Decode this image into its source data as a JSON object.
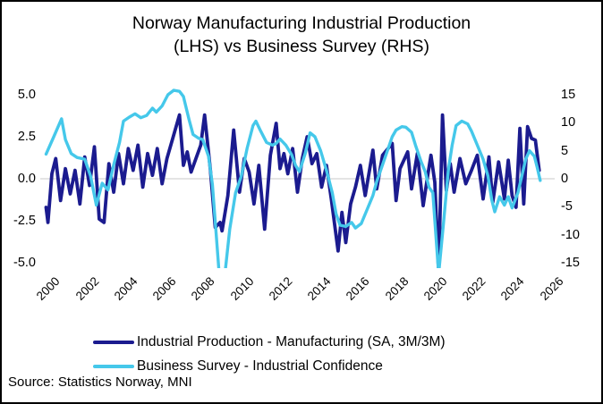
{
  "title": {
    "line1": "Norway Manufacturing Industrial Production",
    "line2": "(LHS) vs Business Survey (RHS)"
  },
  "source": "Source: Statistics Norway, MNI",
  "legend": [
    {
      "label": "Industrial Production - Manufacturing (SA, 3M/3M)",
      "color": "#1b1b8f"
    },
    {
      "label": "Business Survey - Industrial Confidence",
      "color": "#45c8ea"
    }
  ],
  "colors": {
    "navy": "#1b1b8f",
    "cyan": "#45c8ea",
    "gridline": "#d3d3d3",
    "text": "#000000",
    "background": "#ffffff",
    "frame": "#000000"
  },
  "chart_data": {
    "type": "line",
    "title": "Norway Manufacturing Industrial Production (LHS) vs Business Survey (RHS)",
    "grid": "horizontal zero line only",
    "legend_position": "bottom",
    "x_axis": {
      "range": [
        2000,
        2026
      ],
      "tick_labels": [
        "2000",
        "2002",
        "2004",
        "2006",
        "2008",
        "2010",
        "2012",
        "2014",
        "2016",
        "2018",
        "2020",
        "2022",
        "2024",
        "2026"
      ],
      "ticks": [
        2000,
        2002,
        2004,
        2006,
        2008,
        2010,
        2012,
        2014,
        2016,
        2018,
        2020,
        2022,
        2024,
        2026
      ],
      "label_rotation_deg": -45
    },
    "left_axis": {
      "range": [
        -5,
        5
      ],
      "ticks": [
        5.0,
        2.5,
        0.0,
        -2.5,
        -5.0
      ],
      "tick_labels": [
        "5.0",
        "2.5",
        "0.0",
        "-2.5",
        "-5.0"
      ]
    },
    "right_axis": {
      "range": [
        -15,
        15
      ],
      "ticks": [
        15,
        10,
        5,
        0,
        -5,
        -10,
        -15
      ],
      "tick_labels": [
        "15",
        "10",
        "5",
        "0",
        "-5",
        "-10",
        "-15"
      ]
    },
    "zero_gridline": 0,
    "series": [
      {
        "name": "Industrial Production - Manufacturing (SA, 3M/3M)",
        "axis": "left",
        "color": "#1b1b8f",
        "stroke_width": 3.8,
        "points": [
          [
            2000.0,
            -1.7
          ],
          [
            2000.1,
            -2.6
          ],
          [
            2000.3,
            0.3
          ],
          [
            2000.5,
            1.2
          ],
          [
            2000.75,
            -1.3
          ],
          [
            2001.0,
            0.6
          ],
          [
            2001.25,
            -0.9
          ],
          [
            2001.5,
            0.5
          ],
          [
            2001.75,
            -1.5
          ],
          [
            2002.0,
            1.3
          ],
          [
            2002.25,
            -0.4
          ],
          [
            2002.5,
            1.9
          ],
          [
            2002.75,
            -2.4
          ],
          [
            2003.0,
            -2.6
          ],
          [
            2003.25,
            0.9
          ],
          [
            2003.5,
            -0.8
          ],
          [
            2003.75,
            1.5
          ],
          [
            2004.0,
            -0.3
          ],
          [
            2004.25,
            1.8
          ],
          [
            2004.5,
            0.5
          ],
          [
            2004.75,
            2.0
          ],
          [
            2005.0,
            -0.5
          ],
          [
            2005.25,
            1.5
          ],
          [
            2005.5,
            0.2
          ],
          [
            2005.75,
            1.8
          ],
          [
            2006.0,
            -0.3
          ],
          [
            2006.25,
            1.2
          ],
          [
            2006.5,
            2.2
          ],
          [
            2006.9,
            3.8
          ],
          [
            2007.1,
            0.8
          ],
          [
            2007.3,
            1.6
          ],
          [
            2007.5,
            0.4
          ],
          [
            2007.75,
            1.2
          ],
          [
            2008.0,
            2.0
          ],
          [
            2008.2,
            3.8
          ],
          [
            2008.5,
            0.5
          ],
          [
            2008.75,
            -2.9
          ],
          [
            2009.0,
            -2.6
          ],
          [
            2009.1,
            -3.1
          ],
          [
            2009.4,
            -1.0
          ],
          [
            2009.7,
            2.9
          ],
          [
            2010.0,
            -0.8
          ],
          [
            2010.25,
            1.2
          ],
          [
            2010.5,
            0.4
          ],
          [
            2010.75,
            -1.5
          ],
          [
            2011.0,
            0.8
          ],
          [
            2011.3,
            -3.0
          ],
          [
            2011.6,
            1.4
          ],
          [
            2011.9,
            3.3
          ],
          [
            2012.1,
            0.6
          ],
          [
            2012.3,
            1.5
          ],
          [
            2012.5,
            0.3
          ],
          [
            2012.75,
            1.8
          ],
          [
            2013.0,
            -0.8
          ],
          [
            2013.25,
            1.2
          ],
          [
            2013.5,
            2.5
          ],
          [
            2013.75,
            0.9
          ],
          [
            2014.0,
            1.5
          ],
          [
            2014.25,
            -0.5
          ],
          [
            2014.5,
            0.8
          ],
          [
            2014.75,
            -1.2
          ],
          [
            2015.1,
            -4.3
          ],
          [
            2015.3,
            -2.0
          ],
          [
            2015.5,
            -3.8
          ],
          [
            2015.75,
            -1.5
          ],
          [
            2016.0,
            -0.5
          ],
          [
            2016.25,
            0.8
          ],
          [
            2016.5,
            -1.0
          ],
          [
            2016.9,
            1.7
          ],
          [
            2017.1,
            -0.6
          ],
          [
            2017.4,
            1.4
          ],
          [
            2017.9,
            2.1
          ],
          [
            2018.1,
            -1.3
          ],
          [
            2018.3,
            0.6
          ],
          [
            2018.7,
            1.6
          ],
          [
            2018.9,
            -0.6
          ],
          [
            2019.2,
            1.5
          ],
          [
            2019.5,
            -1.6
          ],
          [
            2019.75,
            0.3
          ],
          [
            2019.9,
            1.4
          ],
          [
            2020.1,
            -0.2
          ],
          [
            2020.3,
            -5.6
          ],
          [
            2020.5,
            3.8
          ],
          [
            2020.7,
            -0.7
          ],
          [
            2020.9,
            0.9
          ],
          [
            2021.1,
            -0.8
          ],
          [
            2021.4,
            1.2
          ],
          [
            2021.7,
            -0.3
          ],
          [
            2022.0,
            0.5
          ],
          [
            2022.3,
            1.4
          ],
          [
            2022.6,
            -1.2
          ],
          [
            2022.9,
            1.3
          ],
          [
            2023.1,
            -1.4
          ],
          [
            2023.4,
            1.0
          ],
          [
            2023.7,
            -1.2
          ],
          [
            2023.9,
            1.1
          ],
          [
            2024.1,
            -1.0
          ],
          [
            2024.3,
            -1.7
          ],
          [
            2024.5,
            3.0
          ],
          [
            2024.7,
            -1.5
          ],
          [
            2024.9,
            3.1
          ],
          [
            2025.1,
            2.4
          ],
          [
            2025.3,
            2.3
          ],
          [
            2025.5,
            0.5
          ]
        ]
      },
      {
        "name": "Business Survey - Industrial Confidence",
        "axis": "right",
        "color": "#45c8ea",
        "stroke_width": 3.4,
        "points": [
          [
            2000.0,
            4.4
          ],
          [
            2000.4,
            7.5
          ],
          [
            2000.8,
            10.7
          ],
          [
            2001.0,
            7.0
          ],
          [
            2001.3,
            4.5
          ],
          [
            2001.6,
            3.8
          ],
          [
            2002.0,
            3.5
          ],
          [
            2002.3,
            0.5
          ],
          [
            2002.6,
            -4.7
          ],
          [
            2002.9,
            -0.8
          ],
          [
            2003.2,
            -2.0
          ],
          [
            2003.5,
            2.5
          ],
          [
            2003.8,
            6.5
          ],
          [
            2004.0,
            10.3
          ],
          [
            2004.3,
            11.0
          ],
          [
            2004.6,
            11.6
          ],
          [
            2004.9,
            10.9
          ],
          [
            2005.2,
            11.3
          ],
          [
            2005.5,
            12.6
          ],
          [
            2005.7,
            11.9
          ],
          [
            2006.0,
            13.0
          ],
          [
            2006.3,
            15.0
          ],
          [
            2006.6,
            15.8
          ],
          [
            2006.9,
            15.6
          ],
          [
            2007.1,
            14.7
          ],
          [
            2007.4,
            10.5
          ],
          [
            2007.6,
            7.9
          ],
          [
            2007.9,
            7.2
          ],
          [
            2008.1,
            7.0
          ],
          [
            2008.4,
            4.0
          ],
          [
            2008.6,
            -1.0
          ],
          [
            2008.8,
            -10.0
          ],
          [
            2008.95,
            -17.0
          ],
          [
            2009.25,
            -17.0
          ],
          [
            2009.5,
            -9.0
          ],
          [
            2009.8,
            -2.5
          ],
          [
            2010.1,
            0.5
          ],
          [
            2010.4,
            5.5
          ],
          [
            2010.7,
            9.5
          ],
          [
            2010.85,
            10.3
          ],
          [
            2011.1,
            8.5
          ],
          [
            2011.4,
            6.5
          ],
          [
            2011.7,
            6.0
          ],
          [
            2011.9,
            6.3
          ],
          [
            2012.1,
            7.1
          ],
          [
            2012.4,
            6.0
          ],
          [
            2012.7,
            4.3
          ],
          [
            2012.9,
            2.4
          ],
          [
            2013.1,
            1.3
          ],
          [
            2013.4,
            4.5
          ],
          [
            2013.65,
            8.2
          ],
          [
            2013.9,
            7.5
          ],
          [
            2014.2,
            5.0
          ],
          [
            2014.5,
            1.5
          ],
          [
            2014.8,
            -2.5
          ],
          [
            2015.0,
            -6.3
          ],
          [
            2015.2,
            -8.3
          ],
          [
            2015.5,
            -8.5
          ],
          [
            2015.8,
            -7.8
          ],
          [
            2016.0,
            -8.8
          ],
          [
            2016.3,
            -8.0
          ],
          [
            2016.6,
            -5.5
          ],
          [
            2016.9,
            -3.0
          ],
          [
            2017.1,
            -0.5
          ],
          [
            2017.4,
            2.5
          ],
          [
            2017.7,
            5.5
          ],
          [
            2017.9,
            7.5
          ],
          [
            2018.1,
            8.7
          ],
          [
            2018.4,
            9.3
          ],
          [
            2018.6,
            9.2
          ],
          [
            2018.9,
            8.3
          ],
          [
            2019.1,
            6.0
          ],
          [
            2019.4,
            3.0
          ],
          [
            2019.6,
            1.3
          ],
          [
            2019.8,
            -1.5
          ],
          [
            2020.0,
            -2.5
          ],
          [
            2020.3,
            -17.0
          ],
          [
            2020.55,
            -8.0
          ],
          [
            2020.8,
            1.5
          ],
          [
            2021.0,
            6.0
          ],
          [
            2021.2,
            9.5
          ],
          [
            2021.5,
            10.3
          ],
          [
            2021.8,
            9.8
          ],
          [
            2022.0,
            8.5
          ],
          [
            2022.3,
            6.0
          ],
          [
            2022.6,
            3.5
          ],
          [
            2022.85,
            0.5
          ],
          [
            2023.05,
            -3.8
          ],
          [
            2023.2,
            -5.9
          ],
          [
            2023.45,
            -3.2
          ],
          [
            2023.7,
            -4.7
          ],
          [
            2023.9,
            -3.2
          ],
          [
            2024.1,
            -5.2
          ],
          [
            2024.4,
            -2.5
          ],
          [
            2024.6,
            0.5
          ],
          [
            2024.8,
            3.5
          ],
          [
            2025.0,
            5.0
          ],
          [
            2025.25,
            4.0
          ],
          [
            2025.4,
            2.0
          ],
          [
            2025.55,
            -0.3
          ]
        ]
      }
    ]
  }
}
